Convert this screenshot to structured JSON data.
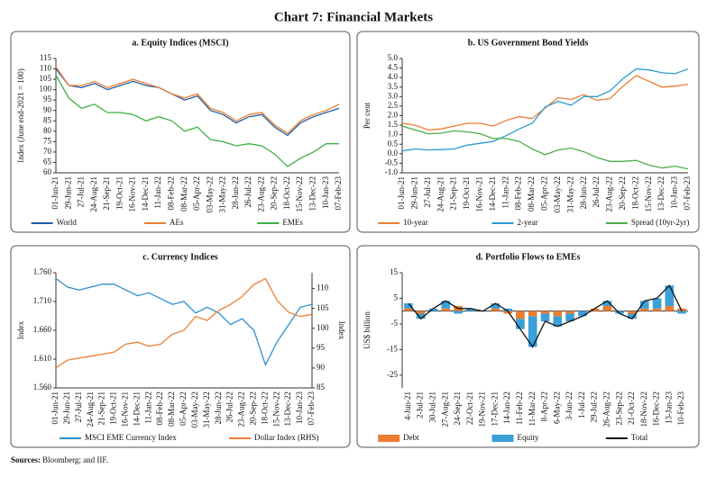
{
  "title": "Chart 7: Financial Markets",
  "sources": {
    "label": "Sources:",
    "text": "Bloomberg; and IIF."
  },
  "chart_data": [
    {
      "type": "line",
      "title": "a. Equity Indices (MSCI)",
      "ylabel": "Index (June end-2021 = 100)",
      "categories": [
        "01-Jun-21",
        "29-Jun-21",
        "27-Jul-21",
        "24-Aug-21",
        "21-Sep-21",
        "19-Oct-21",
        "16-Nov-21",
        "14-Dec-21",
        "11-Jan-22",
        "08-Feb-22",
        "08-Mar-22",
        "05-Apr-22",
        "03-May-22",
        "31-May-22",
        "28-Jun-22",
        "26-Jul-22",
        "23-Aug-22",
        "20-Sep-22",
        "18-Oct-22",
        "15-Nov-22",
        "13-Dec-22",
        "10-Jan-23",
        "07-Feb-23"
      ],
      "series": [
        {
          "name": "World",
          "color": "#1f5fa8",
          "values": [
            110,
            102,
            101,
            103,
            100,
            102,
            104,
            102,
            101,
            98,
            95,
            97,
            90,
            88,
            84,
            87,
            88,
            82,
            78,
            84,
            87,
            89,
            91
          ]
        },
        {
          "name": "AEs",
          "color": "#ed7d31",
          "values": [
            111,
            102,
            102,
            104,
            101,
            103,
            105,
            103,
            101,
            98,
            96,
            98,
            91,
            89,
            85,
            88,
            89,
            83,
            79,
            85,
            88,
            90,
            93
          ]
        },
        {
          "name": "EMEs",
          "color": "#3cb043",
          "values": [
            107,
            96,
            91,
            93,
            89,
            89,
            88,
            85,
            87,
            85,
            80,
            82,
            76,
            75,
            73,
            74,
            73,
            69,
            63,
            67,
            70,
            74,
            74
          ]
        }
      ],
      "ylim": [
        60,
        115
      ],
      "yticks": [
        60,
        65,
        70,
        75,
        80,
        85,
        90,
        95,
        100,
        105,
        110,
        115
      ],
      "grid": false
    },
    {
      "type": "line",
      "title": "b. US  Government Bond Yields",
      "ylabel": "Per cent",
      "categories": [
        "01-Jun-21",
        "29-Jun-21",
        "27-Jul-21",
        "24-Aug-21",
        "21-Sep-21",
        "19-Oct-21",
        "16-Nov-21",
        "14-Dec-21",
        "11-Jan-22",
        "08-Feb-22",
        "08-Mar-22",
        "05-Apr-22",
        "03-May-22",
        "31-May-22",
        "28-Jun-22",
        "26-Jul-22",
        "23-Aug-22",
        "20-Sep-22",
        "18-Oct-22",
        "15-Nov-22",
        "13-Dec-22",
        "10-Jan-23",
        "07-Feb-23"
      ],
      "series": [
        {
          "name": "10-year",
          "color": "#ed7d31",
          "values": [
            1.6,
            1.5,
            1.25,
            1.3,
            1.45,
            1.6,
            1.6,
            1.45,
            1.75,
            1.95,
            1.85,
            2.4,
            2.95,
            2.85,
            3.1,
            2.8,
            2.9,
            3.55,
            4.1,
            3.8,
            3.5,
            3.55,
            3.65
          ]
        },
        {
          "name": "2-year",
          "color": "#2e9ccf",
          "values": [
            0.15,
            0.25,
            0.2,
            0.22,
            0.25,
            0.45,
            0.55,
            0.65,
            0.95,
            1.3,
            1.6,
            2.45,
            2.75,
            2.55,
            3.0,
            3.0,
            3.3,
            3.95,
            4.45,
            4.4,
            4.25,
            4.2,
            4.45
          ]
        },
        {
          "name": "Spread (10yr-2yr)",
          "color": "#4cad4c",
          "values": [
            1.45,
            1.25,
            1.05,
            1.08,
            1.2,
            1.15,
            1.05,
            0.8,
            0.8,
            0.65,
            0.25,
            -0.05,
            0.2,
            0.3,
            0.1,
            -0.2,
            -0.4,
            -0.4,
            -0.35,
            -0.6,
            -0.75,
            -0.65,
            -0.8
          ]
        }
      ],
      "ylim": [
        -1.0,
        5.0
      ],
      "yticks": [
        {
          "value": -1.0,
          "label": "-1.0"
        },
        {
          "value": -0.5,
          "label": "-0.5"
        },
        {
          "value": 0,
          "label": "0.0"
        },
        {
          "value": 0.5,
          "label": "0.5"
        },
        {
          "value": 1.0,
          "label": "1.0"
        },
        {
          "value": 1.5,
          "label": "1.5"
        },
        {
          "value": 2.0,
          "label": "2.0"
        },
        {
          "value": 2.5,
          "label": "2.5"
        },
        {
          "value": 3.0,
          "label": "3.0"
        },
        {
          "value": 3.5,
          "label": "3.5"
        },
        {
          "value": 4.0,
          "label": "4.0"
        },
        {
          "value": 4.5,
          "label": "4.5"
        },
        {
          "value": 5.0,
          "label": "5.0"
        }
      ],
      "grid": false
    },
    {
      "type": "line",
      "title": "c. Currency Indices",
      "ylabel": "Index",
      "y2label": "Index",
      "categories": [
        "01-Jun-21",
        "29-Jun-21",
        "27-Jul-21",
        "24-Aug-21",
        "21-Sep-21",
        "19-Oct-21",
        "16-Nov-21",
        "14-Dec-21",
        "11-Jan-22",
        "08-Feb-22",
        "08-Mar-22",
        "05-Apr-22",
        "03-May-22",
        "31-May-22",
        "28-Jun-22",
        "26-Jul-22",
        "23-Aug-22",
        "20-Sep-22",
        "18-Oct-22",
        "15-Nov-22",
        "13-Dec-22",
        "10-Jan-23",
        "07-Feb-23"
      ],
      "series": [
        {
          "name": "MSCI EME Currency Index",
          "color": "#2e8fd0",
          "values": [
            1.75,
            1.735,
            1.73,
            1.735,
            1.74,
            1.74,
            1.73,
            1.72,
            1.725,
            1.715,
            1.705,
            1.71,
            1.69,
            1.7,
            1.69,
            1.67,
            1.68,
            1.66,
            1.6,
            1.64,
            1.67,
            1.7,
            1.705
          ]
        },
        {
          "name": "Dollar Index (RHS)",
          "color": "#ed7d31",
          "axis": "y2",
          "values": [
            90,
            92,
            92.5,
            93,
            93.5,
            94,
            96,
            96.5,
            95.5,
            96,
            98.5,
            99.5,
            103,
            102,
            104.5,
            106,
            108,
            111,
            112.5,
            107,
            104,
            103,
            103.5
          ]
        }
      ],
      "ylim": [
        1.56,
        1.76
      ],
      "yticks": [
        {
          "value": 1.56,
          "label": "1.560"
        },
        {
          "value": 1.61,
          "label": "1.610"
        },
        {
          "value": 1.66,
          "label": "1.660"
        },
        {
          "value": 1.71,
          "label": "1.710"
        },
        {
          "value": 1.76,
          "label": "1.760"
        }
      ],
      "y2lim": [
        85,
        114
      ],
      "y2ticks": [
        85,
        90,
        95,
        100,
        105,
        110
      ],
      "grid": false
    },
    {
      "type": "bar",
      "title": "d. Portfolio Flows to EMEs",
      "ylabel": "US$ billion",
      "stacked": true,
      "categories": [
        "4-Jun-21",
        "2-Jul-21",
        "30-Jul-21",
        "27-Aug-21",
        "24-Sep-21",
        "22-Oct-21",
        "19-Nov-21",
        "17-Dec-21",
        "14-Jan-22",
        "11-Feb-22",
        "11-Mar-22",
        "8-Apr-22",
        "6-May-22",
        "3-Jun-22",
        "1-Jul-22",
        "29-Jul-22",
        "26-Aug-22",
        "23-Sep-22",
        "21-Oct-22",
        "18-Nov-22",
        "16-Dec-22",
        "13-Jan-23",
        "10-Feb-23"
      ],
      "series": [
        {
          "name": "Debt",
          "color": "#ed7d31",
          "type": "bar",
          "values": [
            1,
            -1,
            0,
            1,
            2,
            0,
            0,
            1,
            -1,
            -3,
            -2,
            -1,
            -2,
            -1,
            0,
            1,
            2,
            0,
            -1,
            1,
            1,
            2,
            1
          ]
        },
        {
          "name": "Equity",
          "color": "#3aa0d8",
          "type": "bar",
          "values": [
            2,
            -2,
            1,
            3,
            -1,
            1,
            0,
            2,
            1,
            -4,
            -12,
            -3,
            -4,
            -3,
            -2,
            0,
            2,
            -1,
            -2,
            3,
            4,
            8,
            -1
          ]
        },
        {
          "name": "Total",
          "color": "#111111",
          "type": "line",
          "values": [
            3,
            -3,
            1,
            4,
            1,
            1,
            0,
            3,
            0,
            -7,
            -14,
            -4,
            -6,
            -4,
            -2,
            1,
            4,
            -1,
            -3,
            4,
            5,
            10,
            0
          ]
        }
      ],
      "ylim": [
        -30,
        15
      ],
      "yticks": [
        -25,
        -15,
        -5,
        5,
        15
      ],
      "grid": false
    }
  ]
}
